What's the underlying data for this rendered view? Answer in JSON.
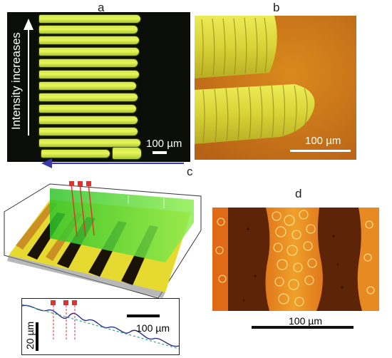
{
  "panels": {
    "a": {
      "label": "a",
      "axis_text": "Intensity increases",
      "scale_text": "100 µm"
    },
    "b": {
      "label": "b",
      "scale_text": "100 µm"
    },
    "c": {
      "label": "c",
      "scale_text": "100 µm",
      "depth_text": "20 µm"
    },
    "d": {
      "label": "d",
      "scale_text": "100 µm"
    }
  },
  "colors": {
    "fluorescence": "#d9ef50",
    "substrate_orange": "#c8741a",
    "green_plane": "#4fd23a",
    "arrow_blue": "#3a3aa8",
    "profile_line": "#2b2b8c",
    "trend_line": "#2aa88a",
    "marker_red": "#e0322e"
  }
}
